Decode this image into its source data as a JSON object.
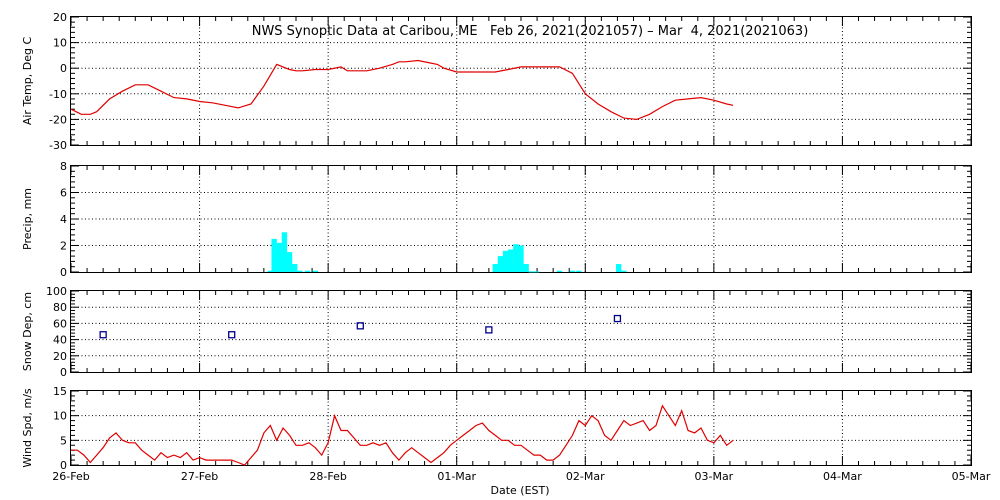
{
  "title": "NWS Synoptic Data at Caribou, ME   Feb 26, 2021(2021057) – Mar  4, 2021(2021063)",
  "colors": {
    "line": "#e00000",
    "bar": "#00ffff",
    "marker": "#00008b",
    "axis": "#000000"
  },
  "chart_data": {
    "x_axis": {
      "label": "Date (EST)",
      "range_days": [
        0,
        7
      ],
      "tick_labels": [
        "26-Feb",
        "27-Feb",
        "28-Feb",
        "01-Mar",
        "02-Mar",
        "03-Mar",
        "04-Mar",
        "05-Mar"
      ]
    },
    "panels": [
      {
        "id": "air_temp",
        "type": "line",
        "ylabel": "Air Temp, Deg C",
        "ylim": [
          -30,
          20
        ],
        "yticks": [
          -30,
          -20,
          -10,
          0,
          10,
          20
        ],
        "grid": true,
        "x": [
          0,
          0.08,
          0.15,
          0.2,
          0.3,
          0.4,
          0.5,
          0.6,
          0.7,
          0.8,
          0.9,
          1.0,
          1.1,
          1.2,
          1.3,
          1.4,
          1.5,
          1.6,
          1.7,
          1.75,
          1.8,
          1.9,
          2.0,
          2.1,
          2.15,
          2.2,
          2.3,
          2.4,
          2.5,
          2.55,
          2.6,
          2.7,
          2.8,
          2.85,
          2.9,
          3.0,
          3.1,
          3.2,
          3.3,
          3.4,
          3.5,
          3.6,
          3.7,
          3.8,
          3.9,
          4.0,
          4.1,
          4.2,
          4.3,
          4.4,
          4.5,
          4.6,
          4.7,
          4.8,
          4.9,
          5.0,
          5.1,
          5.15
        ],
        "y": [
          -16,
          -18,
          -18,
          -17,
          -12,
          -9,
          -6.5,
          -6.5,
          -9,
          -11.5,
          -12,
          -13,
          -13.5,
          -14.5,
          -15.5,
          -14,
          -7,
          1.5,
          -0.5,
          -1,
          -1,
          -0.5,
          -0.5,
          0.5,
          -1,
          -1,
          -1,
          0,
          1.5,
          2.5,
          2.5,
          3,
          2,
          1.5,
          0,
          -1.5,
          -1.5,
          -1.5,
          -1.5,
          -0.5,
          0.5,
          0.5,
          0.5,
          0.5,
          -2,
          -10,
          -14,
          -17,
          -19.5,
          -20,
          -18,
          -15,
          -12.5,
          -12,
          -11.5,
          -12.5,
          -14,
          -14.5
        ],
        "series_color": "line"
      },
      {
        "id": "precip",
        "type": "bar",
        "ylabel": "Precip, mm",
        "ylim": [
          0,
          8
        ],
        "yticks": [
          0,
          2,
          4,
          6,
          8
        ],
        "grid": true,
        "x": [
          1.55,
          1.58,
          1.62,
          1.66,
          1.7,
          1.74,
          1.78,
          1.84,
          1.9,
          3.3,
          3.34,
          3.38,
          3.42,
          3.46,
          3.5,
          3.54,
          3.58,
          3.62,
          3.8,
          3.9,
          3.95,
          4.26,
          4.3
        ],
        "values": [
          0.1,
          2.5,
          2.2,
          3.0,
          1.5,
          0.6,
          0.1,
          0.1,
          0.1,
          0.6,
          1.2,
          1.6,
          1.7,
          2.1,
          2.0,
          0.6,
          0.05,
          0.05,
          0.1,
          0.1,
          0.1,
          0.6,
          0.1
        ],
        "series_color": "bar"
      },
      {
        "id": "snow_depth",
        "type": "scatter",
        "ylabel": "Snow Dep, cm",
        "ylim": [
          0,
          100
        ],
        "yticks": [
          0,
          20,
          40,
          60,
          80,
          100
        ],
        "grid": true,
        "x": [
          0.25,
          1.25,
          2.25,
          3.25,
          4.25
        ],
        "y": [
          46,
          46,
          57,
          52,
          66
        ],
        "series_color": "marker"
      },
      {
        "id": "wind_speed",
        "type": "line",
        "ylabel": "Wind Spd, m/s",
        "ylim": [
          0,
          15
        ],
        "yticks": [
          0,
          5,
          10,
          15
        ],
        "grid": true,
        "x": [
          0,
          0.05,
          0.1,
          0.15,
          0.2,
          0.25,
          0.3,
          0.35,
          0.4,
          0.45,
          0.5,
          0.55,
          0.6,
          0.65,
          0.7,
          0.75,
          0.8,
          0.85,
          0.9,
          0.95,
          1.0,
          1.05,
          1.1,
          1.15,
          1.2,
          1.25,
          1.3,
          1.35,
          1.4,
          1.45,
          1.5,
          1.55,
          1.6,
          1.65,
          1.7,
          1.75,
          1.8,
          1.85,
          1.9,
          1.95,
          2.0,
          2.05,
          2.1,
          2.15,
          2.2,
          2.25,
          2.3,
          2.35,
          2.4,
          2.45,
          2.5,
          2.55,
          2.6,
          2.65,
          2.7,
          2.75,
          2.8,
          2.85,
          2.9,
          2.95,
          3.0,
          3.05,
          3.1,
          3.15,
          3.2,
          3.25,
          3.3,
          3.35,
          3.4,
          3.45,
          3.5,
          3.55,
          3.6,
          3.65,
          3.7,
          3.75,
          3.8,
          3.85,
          3.9,
          3.95,
          4.0,
          4.05,
          4.1,
          4.15,
          4.2,
          4.25,
          4.3,
          4.35,
          4.4,
          4.45,
          4.5,
          4.55,
          4.6,
          4.65,
          4.7,
          4.75,
          4.8,
          4.85,
          4.9,
          4.95,
          5.0,
          5.05,
          5.1,
          5.15
        ],
        "y": [
          3,
          3,
          2,
          0.5,
          2,
          3.5,
          5.5,
          6.5,
          5,
          4.5,
          4.5,
          3,
          2,
          1,
          2.5,
          1.5,
          2,
          1.5,
          2.5,
          1,
          1.5,
          1,
          1,
          1,
          1,
          1,
          0.5,
          0,
          1.5,
          3,
          6.5,
          8,
          5,
          7.5,
          6,
          4,
          4,
          4.5,
          3.5,
          2,
          4.5,
          10,
          7,
          7,
          5.5,
          4,
          4,
          4.5,
          4,
          4.5,
          2.5,
          1,
          2.5,
          3.5,
          2.5,
          1.5,
          0.5,
          1.5,
          2.5,
          4,
          5,
          6,
          7,
          8,
          8.5,
          7,
          6,
          5,
          5,
          4,
          4,
          3,
          2,
          2,
          1,
          1,
          2,
          4,
          6,
          9,
          8,
          10,
          9,
          6,
          5,
          7,
          9,
          8,
          8.5,
          9,
          7,
          8,
          12,
          10,
          8,
          11,
          7,
          6.5,
          7.5,
          5,
          4.5,
          6,
          4,
          5
        ],
        "series_color": "line"
      }
    ]
  }
}
